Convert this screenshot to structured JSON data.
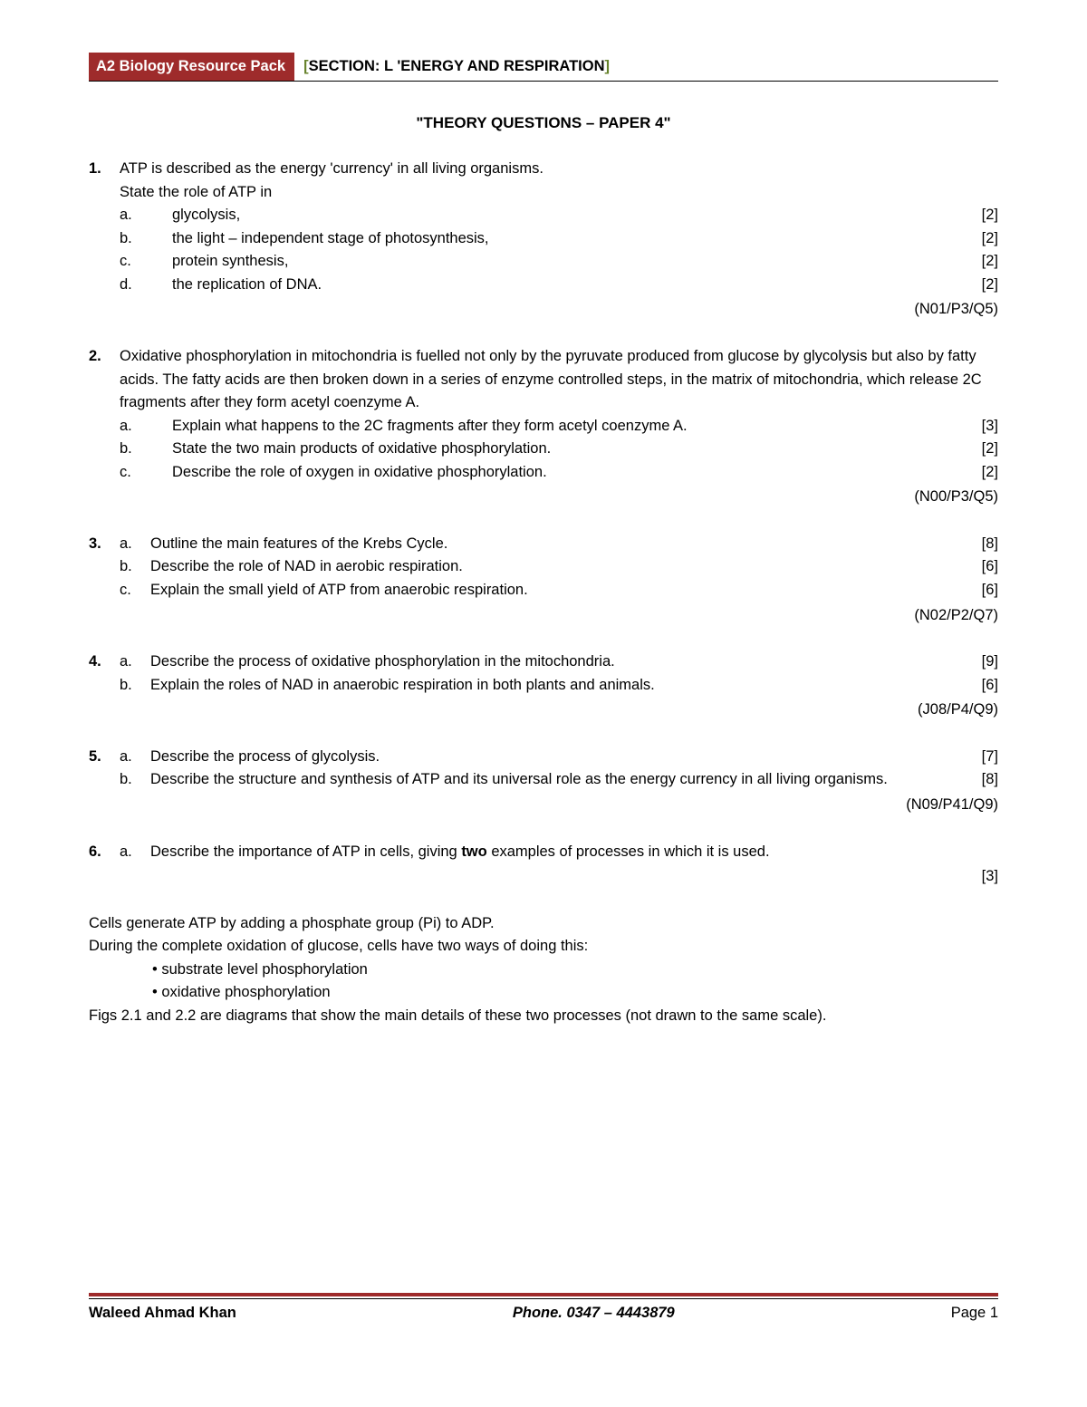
{
  "header": {
    "left": "A2 Biology Resource Pack",
    "right_open": "[",
    "right_text": "SECTION: L 'ENERGY AND RESPIRATION",
    "right_close": "]"
  },
  "title": "\"THEORY QUESTIONS – PAPER 4\"",
  "questions": [
    {
      "num": "1.",
      "stem_lines": [
        "ATP is described as the energy 'currency' in all living organisms.",
        "State the role of ATP in"
      ],
      "subs": [
        {
          "letter": "a.",
          "text": "glycolysis,",
          "marks": "[2]"
        },
        {
          "letter": "b.",
          "text": "the light – independent stage of photosynthesis,",
          "marks": "[2]"
        },
        {
          "letter": "c.",
          "text": "protein synthesis,",
          "marks": "[2]"
        },
        {
          "letter": "d.",
          "text": "the replication of DNA.",
          "marks": "[2]"
        }
      ],
      "ref": "(N01/P3/Q5)",
      "sub_style": "wide"
    },
    {
      "num": "2.",
      "stem_lines": [
        "Oxidative phosphorylation in mitochondria is fuelled not only by the pyruvate produced from glucose by glycolysis but also by fatty acids. The fatty acids are then broken down in a series of enzyme controlled steps, in the matrix of mitochondria, which release 2C fragments after they form acetyl coenzyme A."
      ],
      "subs": [
        {
          "letter": "a.",
          "text": "Explain what happens to the 2C fragments after they form acetyl coenzyme A.",
          "marks": "[3]"
        },
        {
          "letter": "b.",
          "text": "State the two main products of oxidative phosphorylation.",
          "marks": "[2]"
        },
        {
          "letter": "c.",
          "text": "Describe the role of oxygen in oxidative phosphorylation.",
          "marks": "[2]"
        }
      ],
      "ref": "(N00/P3/Q5)",
      "sub_style": "wide"
    },
    {
      "num": "3.",
      "stem_lines": [],
      "subs": [
        {
          "letter": "a.",
          "text": "Outline the main features of the Krebs Cycle.",
          "marks": "[8]"
        },
        {
          "letter": "b.",
          "text": "Describe the role of NAD in aerobic respiration.",
          "marks": "[6]"
        },
        {
          "letter": "c.",
          "text": "Explain the small yield of ATP from anaerobic respiration.",
          "marks": "[6]"
        }
      ],
      "ref": "(N02/P2/Q7)",
      "sub_style": "narrow"
    },
    {
      "num": "4.",
      "stem_lines": [],
      "subs": [
        {
          "letter": "a.",
          "text": "Describe the process of oxidative phosphorylation in the mitochondria.",
          "marks": "[9]"
        },
        {
          "letter": "b.",
          "text": "Explain the roles of NAD in anaerobic respiration in both plants and animals.",
          "marks": "[6]"
        }
      ],
      "ref": "(J08/P4/Q9)",
      "sub_style": "narrow"
    },
    {
      "num": "5.",
      "stem_lines": [],
      "subs": [
        {
          "letter": "a.",
          "text": "Describe the process of glycolysis.",
          "marks": "[7]"
        },
        {
          "letter": "b.",
          "text": "Describe the structure and synthesis of ATP and its universal role as the energy currency in all living organisms.",
          "marks": "[8]"
        }
      ],
      "ref": "(N09/P41/Q9)",
      "sub_style": "narrow"
    },
    {
      "num": "6.",
      "stem_lines": [],
      "subs": [
        {
          "letter": "a.",
          "text_pre": "Describe the importance of ATP in cells, giving ",
          "text_bold": "two",
          "text_post": " examples of processes in which it is used.",
          "marks": "[3]",
          "marks_below": true
        }
      ],
      "ref": "",
      "sub_style": "narrow"
    }
  ],
  "bottom": {
    "line1": "Cells generate ATP by adding a phosphate group (Pi) to ADP.",
    "line2": "During the complete oxidation of glucose, cells have two ways of doing this:",
    "bullets": [
      "substrate level phosphorylation",
      "oxidative phosphorylation"
    ],
    "line3": "Figs 2.1 and 2.2 are diagrams that show the main details of these two processes (not drawn to the same scale)."
  },
  "footer": {
    "left": "Waleed Ahmad Khan",
    "center": "Phone. 0347 – 4443879",
    "right": "Page 1"
  },
  "colors": {
    "brand": "#9e2b2b",
    "bracket": "#66822b"
  }
}
